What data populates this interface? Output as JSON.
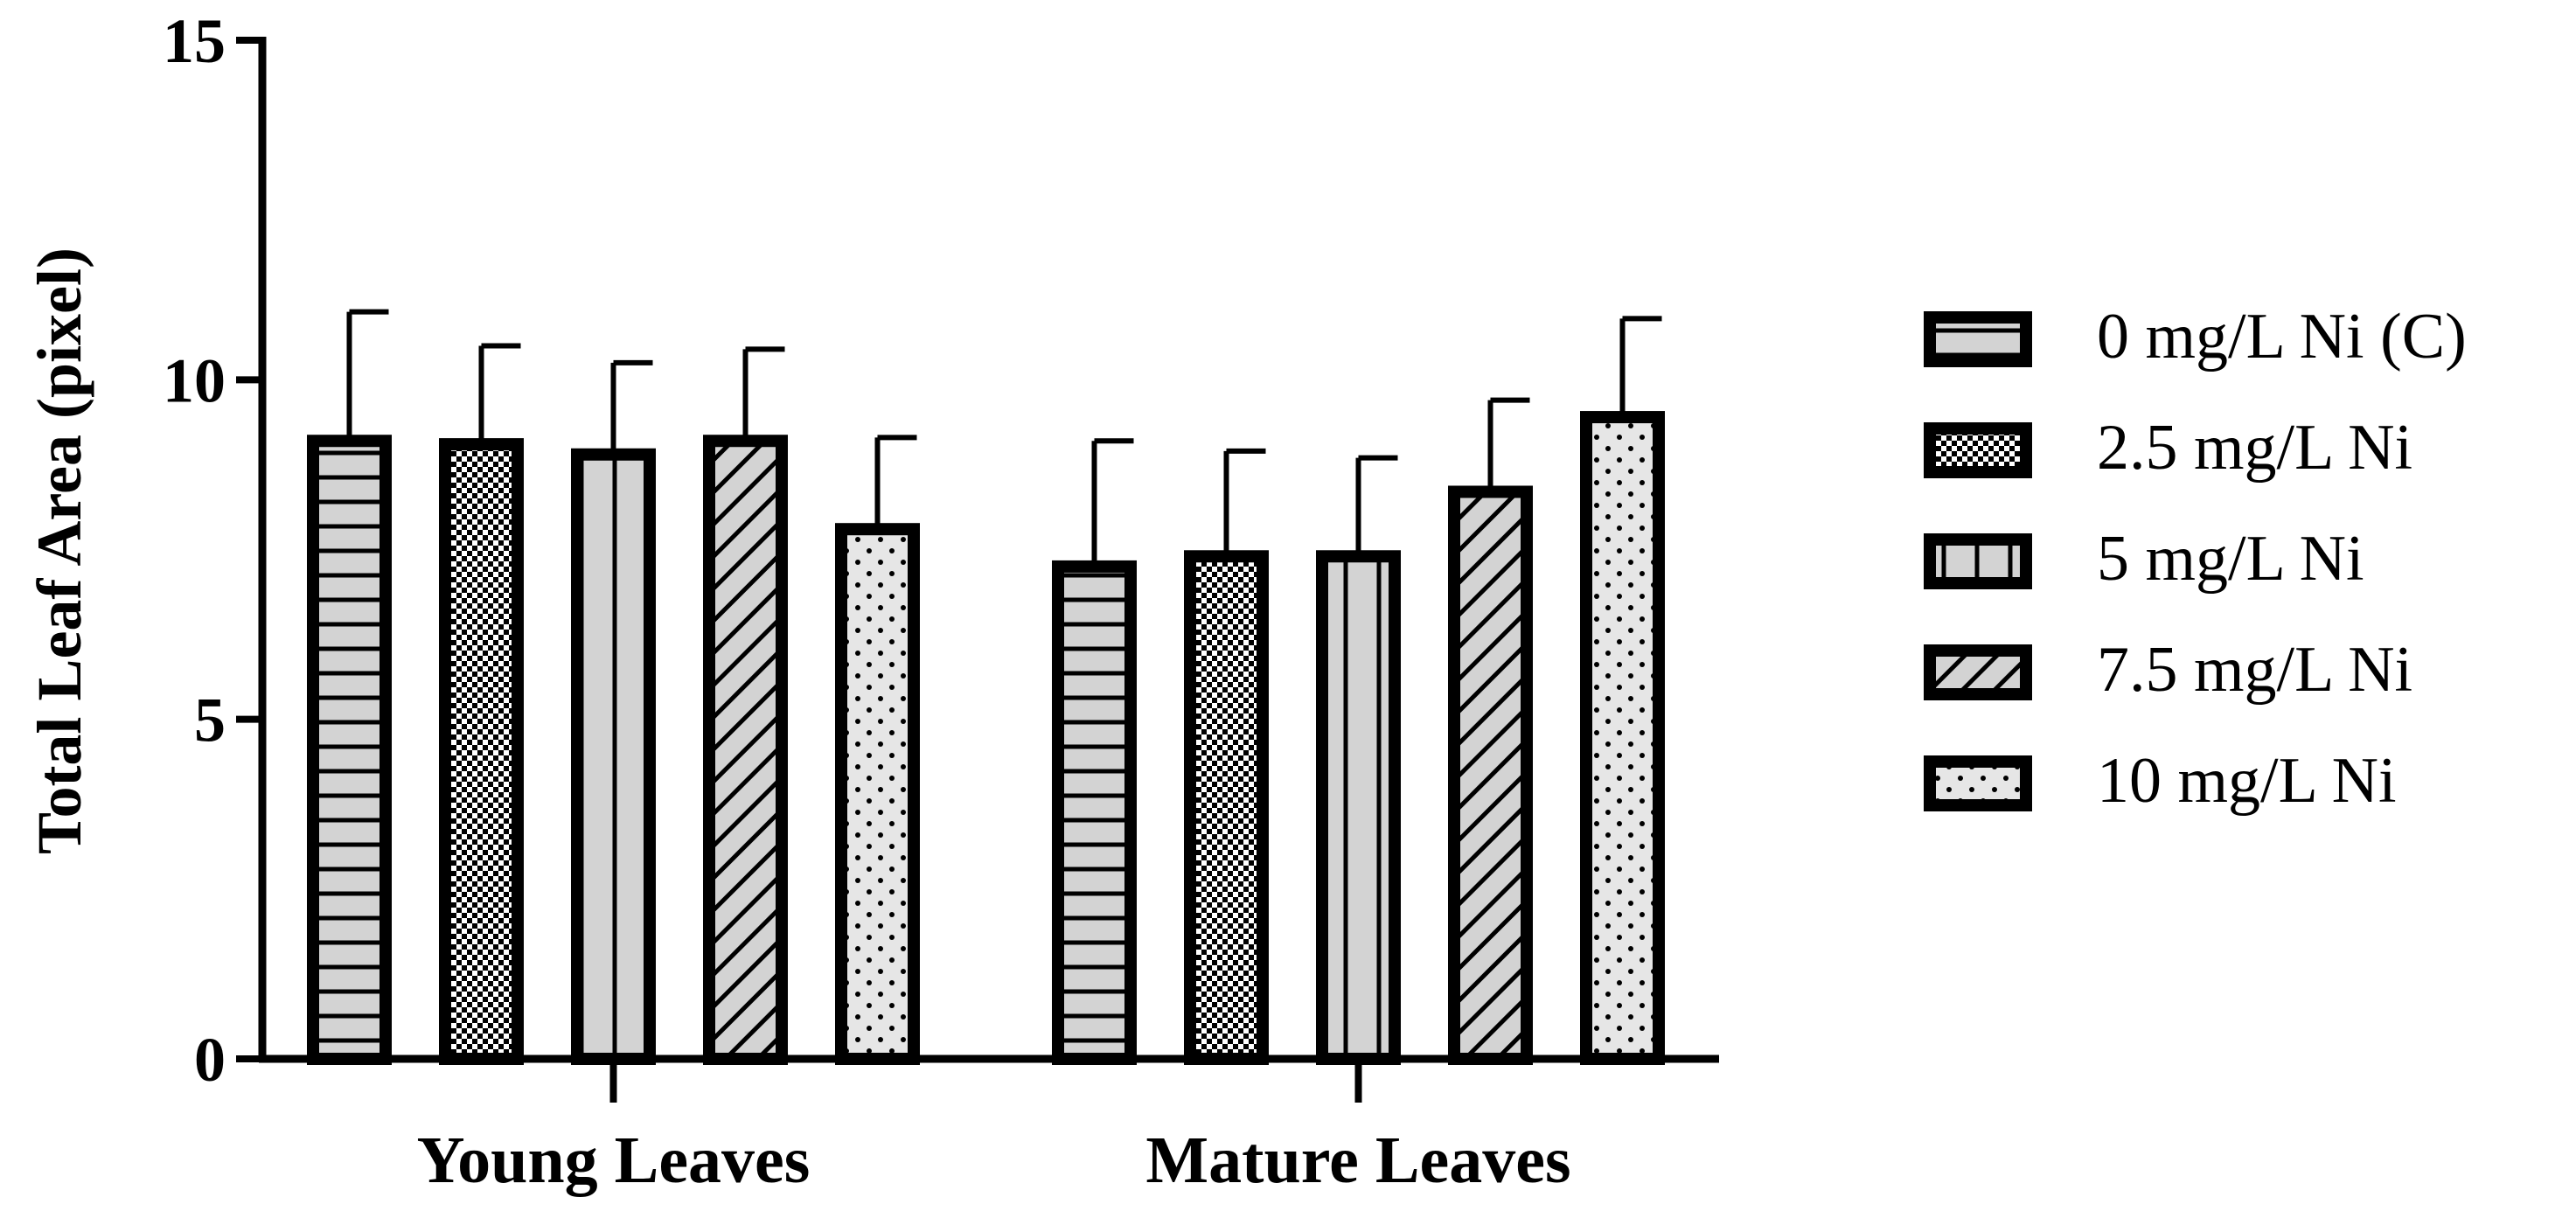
{
  "chart_data": {
    "type": "bar",
    "title": "",
    "xlabel": "",
    "ylabel": "Total Leaf Area (pixel)",
    "ylim": [
      0,
      15
    ],
    "yticks": [
      0,
      5,
      10,
      15
    ],
    "grid": false,
    "legend_position": "right",
    "categories": [
      "Young Leaves",
      "Mature Leaves"
    ],
    "series": [
      {
        "name": "0 mg/L Ni (C)",
        "pattern": "horizontal-lines",
        "values": [
          9.1,
          7.25
        ],
        "errors": [
          1.9,
          1.85
        ]
      },
      {
        "name": "2.5 mg/L Ni",
        "pattern": "checker",
        "values": [
          9.05,
          7.4
        ],
        "errors": [
          1.45,
          1.55
        ]
      },
      {
        "name": "5 mg/L Ni",
        "pattern": "vertical-lines",
        "values": [
          8.9,
          7.4
        ],
        "errors": [
          1.35,
          1.45
        ]
      },
      {
        "name": "7.5 mg/L Ni",
        "pattern": "diagonal-lines",
        "values": [
          9.1,
          8.35
        ],
        "errors": [
          1.35,
          1.35
        ]
      },
      {
        "name": "10 mg/L Ni",
        "pattern": "dots",
        "values": [
          7.8,
          9.45
        ],
        "errors": [
          1.35,
          1.45
        ]
      }
    ]
  },
  "colors": {
    "bar_fill": "#d3d3d3",
    "outline": "#000000",
    "background": "#ffffff"
  }
}
